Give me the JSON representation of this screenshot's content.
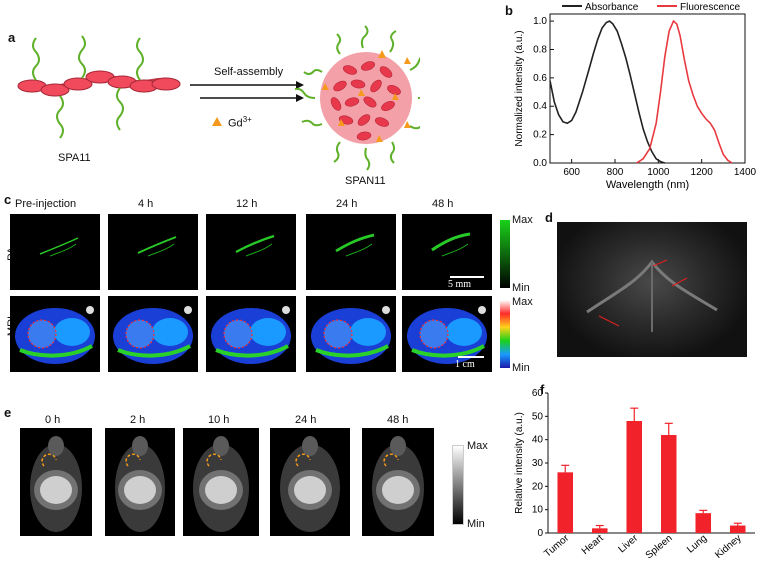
{
  "figure": {
    "panels": {
      "a": {
        "label": "a",
        "arrow_text": "Self-assembly",
        "gd_label_base": "Gd",
        "gd_label_sup": "3+",
        "monomer_label": "SPA11",
        "nanoparticle_label": "SPAN11"
      },
      "b": {
        "label": "b"
      },
      "c": {
        "label": "c",
        "times": [
          "Pre-injection",
          "4 h",
          "12 h",
          "24 h",
          "48 h"
        ],
        "row_pa": "PA",
        "row_mri": "MRI",
        "pa_scale": "5 mm",
        "mri_scale": "1 cm",
        "pa_max": "Max",
        "pa_min": "Min",
        "mri_max": "Max",
        "mri_min": "Min",
        "pa_colors": [
          "#1ad11a",
          "#000000"
        ],
        "mri_colors": [
          "#ff2a2a",
          "#ffd21a",
          "#1ad11a",
          "#1a9aff",
          "#1a1aaa"
        ]
      },
      "d": {
        "label": "d"
      },
      "e": {
        "label": "e",
        "times": [
          "0 h",
          "2 h",
          "10 h",
          "24 h",
          "48 h"
        ],
        "max": "Max",
        "min": "Min"
      },
      "f": {
        "label": "f"
      }
    }
  },
  "chart_data": [
    {
      "id": "b",
      "type": "line",
      "xlabel": "Wavelength   (nm)",
      "ylabel": "Normalized  intensity  (a.u.)",
      "xlim": [
        500,
        1400
      ],
      "ylim": [
        0,
        1.05
      ],
      "xticks": [
        600,
        800,
        1000,
        1200,
        1400
      ],
      "yticks": [
        0.0,
        0.2,
        0.4,
        0.6,
        0.8,
        1.0
      ],
      "xtick_labels": [
        "600",
        "800",
        "1000",
        "1200",
        "1400"
      ],
      "ytick_labels": [
        "0.0",
        "0.2",
        "0.4",
        "0.6",
        "0.8",
        "1.0"
      ],
      "legend_position": "top",
      "series": [
        {
          "name": "Absorbance",
          "color": "#222222",
          "x": [
            500,
            520,
            540,
            560,
            580,
            600,
            620,
            650,
            680,
            700,
            720,
            740,
            760,
            775,
            790,
            810,
            830,
            850,
            870,
            890,
            910,
            930,
            950,
            970,
            990,
            1010,
            1030
          ],
          "y": [
            0.58,
            0.43,
            0.34,
            0.29,
            0.28,
            0.3,
            0.36,
            0.5,
            0.66,
            0.77,
            0.87,
            0.95,
            0.99,
            1.0,
            0.98,
            0.93,
            0.84,
            0.74,
            0.62,
            0.49,
            0.36,
            0.24,
            0.15,
            0.08,
            0.03,
            0.01,
            0.0
          ]
        },
        {
          "name": "Fluorescence",
          "color": "#e8393f",
          "x": [
            900,
            930,
            960,
            990,
            1010,
            1030,
            1050,
            1070,
            1085,
            1100,
            1120,
            1140,
            1160,
            1180,
            1200,
            1220,
            1240,
            1260,
            1280,
            1300,
            1320,
            1340
          ],
          "y": [
            0.0,
            0.03,
            0.1,
            0.28,
            0.5,
            0.75,
            0.93,
            1.0,
            0.98,
            0.9,
            0.73,
            0.58,
            0.48,
            0.4,
            0.35,
            0.31,
            0.28,
            0.23,
            0.14,
            0.06,
            0.02,
            0.0
          ]
        }
      ]
    },
    {
      "id": "f",
      "type": "bar",
      "ylabel": "Relative intensity (a.u.)",
      "categories": [
        "Tumor",
        "Heart",
        "Liver",
        "Spleen",
        "Lung",
        "Kidney"
      ],
      "values": [
        26,
        2,
        48,
        42,
        8.5,
        3.2
      ],
      "errors": [
        3,
        1.2,
        5.5,
        5,
        1.2,
        1
      ],
      "ylim": [
        0,
        60
      ],
      "yticks": [
        0,
        10,
        20,
        30,
        40,
        50,
        60
      ],
      "ytick_labels": [
        "0",
        "10",
        "20",
        "30",
        "40",
        "50",
        "60"
      ],
      "color": "#f2222a"
    }
  ]
}
